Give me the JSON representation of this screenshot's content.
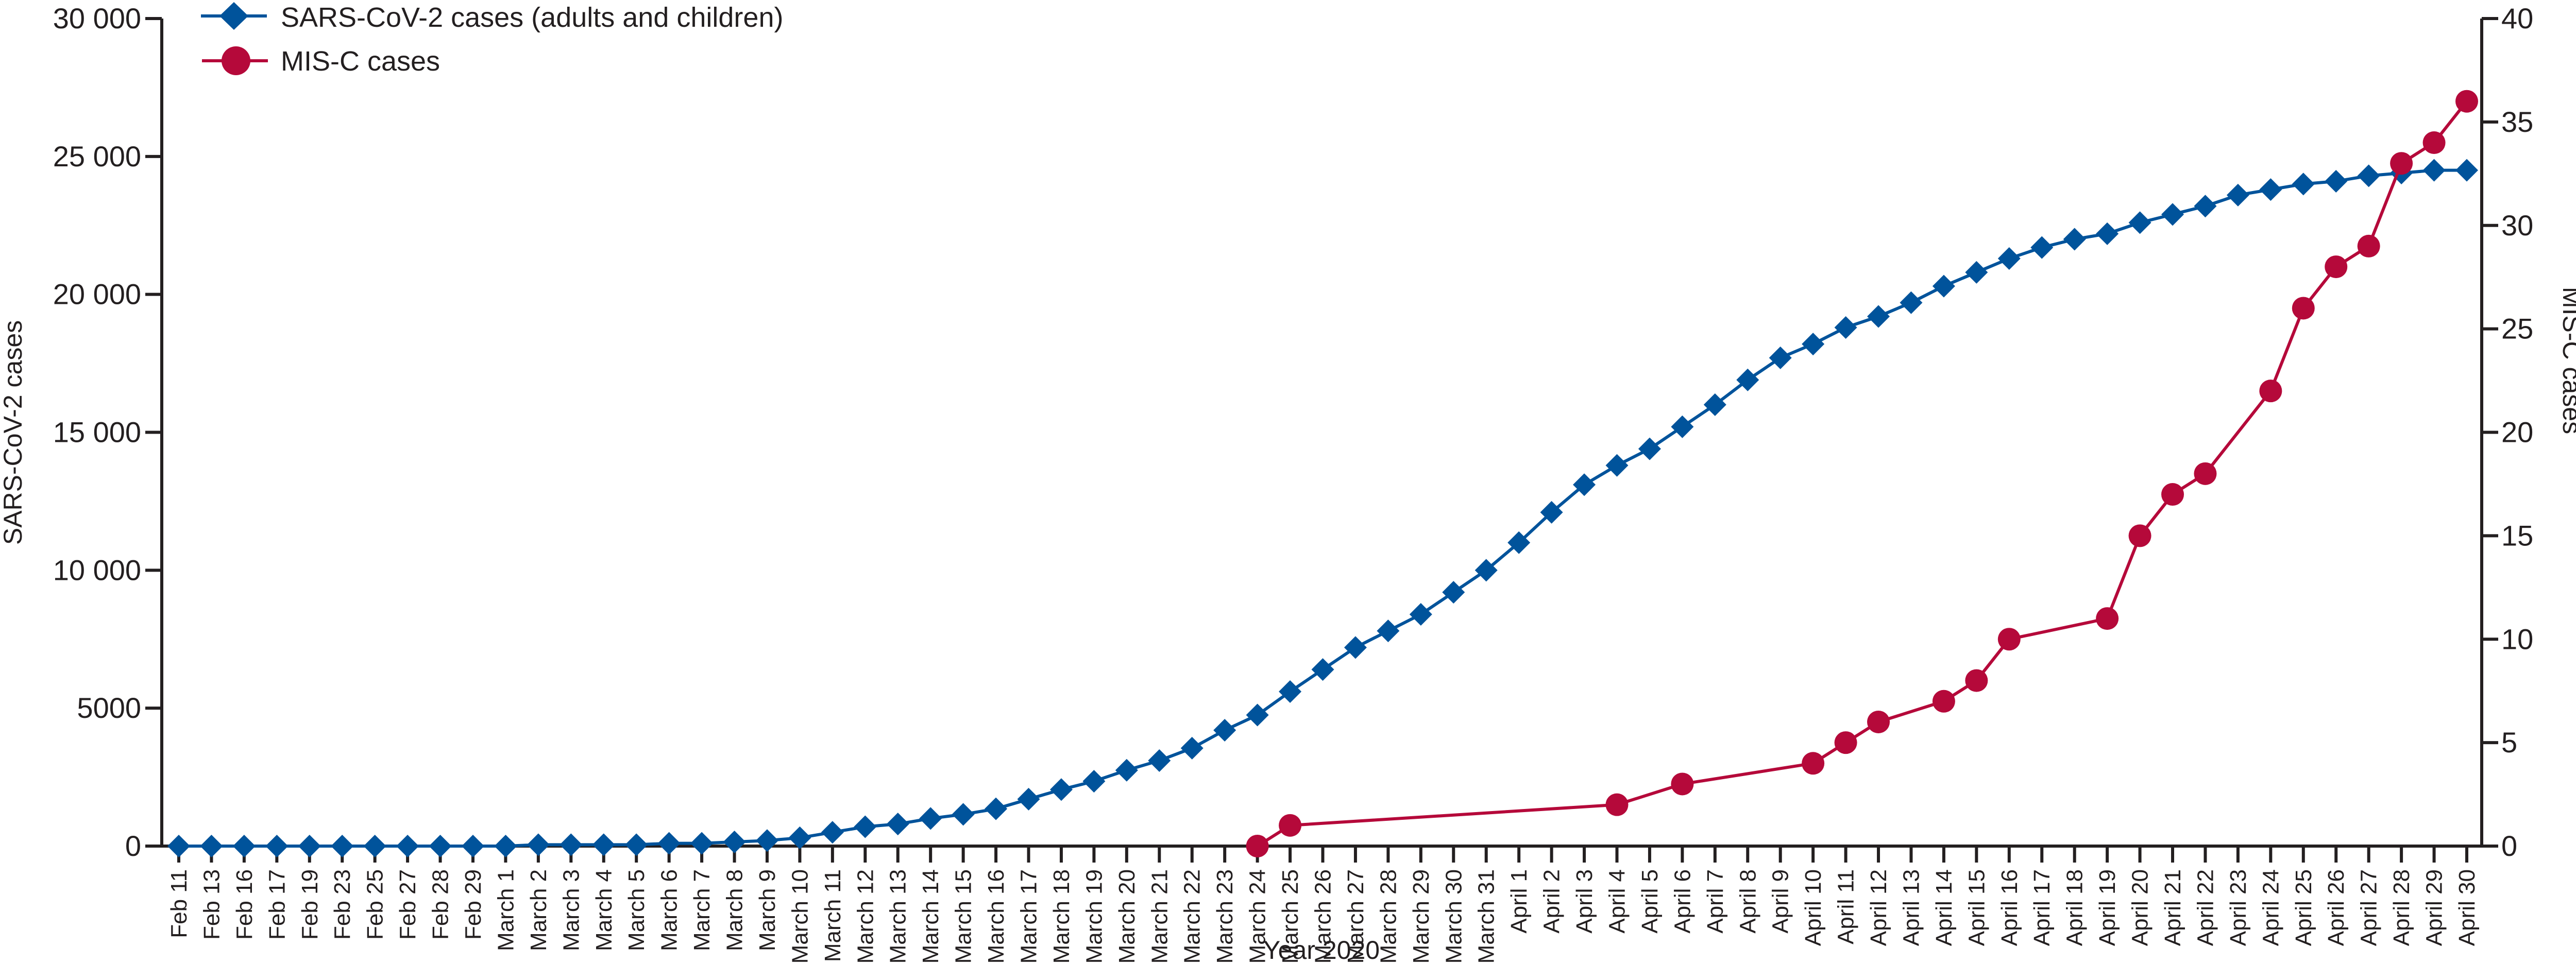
{
  "chart_data": {
    "type": "line",
    "xlabel": "Year 2020",
    "ylabel": "SARS-CoV-2 cases",
    "y2label": "MIS-C cases",
    "ylim": [
      0,
      30000
    ],
    "y2lim": [
      0,
      40
    ],
    "yticks": [
      "0",
      "5000",
      "10 000",
      "15 000",
      "20 000",
      "25 000",
      "30 000"
    ],
    "y2ticks": [
      "0",
      "5",
      "10",
      "15",
      "20",
      "25",
      "30",
      "35",
      "40"
    ],
    "legend_placement": "top-left",
    "grid": false,
    "categories": [
      "Feb 11",
      "Feb 13",
      "Feb 16",
      "Feb 17",
      "Feb 19",
      "Feb 23",
      "Feb 25",
      "Feb 27",
      "Feb 28",
      "Feb 29",
      "March 1",
      "March 2",
      "March 3",
      "March 4",
      "March 5",
      "March 6",
      "March 7",
      "March 8",
      "March 9",
      "March 10",
      "March 11",
      "March 12",
      "March 13",
      "March 14",
      "March 15",
      "March 16",
      "March 17",
      "March 18",
      "March 19",
      "March 20",
      "March 21",
      "March 22",
      "March 23",
      "March 24",
      "March 25",
      "March 26",
      "March 27",
      "March 28",
      "March 29",
      "March 30",
      "March 31",
      "April 1",
      "April 2",
      "April 3",
      "April 4",
      "April 5",
      "April 6",
      "April 7",
      "April 8",
      "April 9",
      "April 10",
      "April 11",
      "April 12",
      "April 13",
      "April 14",
      "April 15",
      "April 16",
      "April 17",
      "April 18",
      "April 19",
      "April 20",
      "April 21",
      "April 22",
      "April 23",
      "April 24",
      "April 25",
      "April 26",
      "April 27",
      "April 28",
      "April 29",
      "April 30"
    ],
    "series": [
      {
        "name": "SARS-CoV-2 cases (adults and children)",
        "axis": "left",
        "color": "#00539b",
        "marker": "diamond",
        "values": [
          0,
          0,
          0,
          0,
          0,
          0,
          0,
          0,
          0,
          0,
          0,
          50,
          50,
          50,
          50,
          100,
          100,
          150,
          200,
          300,
          500,
          700,
          800,
          1000,
          1150,
          1350,
          1700,
          2050,
          2350,
          2750,
          3100,
          3550,
          4200,
          4750,
          5600,
          6400,
          7200,
          7800,
          8400,
          9200,
          10000,
          11000,
          12100,
          13100,
          13800,
          14400,
          15200,
          16000,
          16900,
          17700,
          18200,
          18800,
          19200,
          19700,
          20300,
          20800,
          21300,
          21700,
          22000,
          22200,
          22600,
          22900,
          23200,
          23600,
          23800,
          24000,
          24100,
          24300,
          24400,
          24500,
          24500
        ]
      },
      {
        "name": "MIS-C cases",
        "axis": "right",
        "color": "#b5093a",
        "marker": "circle",
        "points": [
          [
            "March 24",
            0
          ],
          [
            "March 25",
            1
          ],
          [
            "April 4",
            2
          ],
          [
            "April 6",
            3
          ],
          [
            "April 10",
            4
          ],
          [
            "April 11",
            5
          ],
          [
            "April 12",
            6
          ],
          [
            "April 14",
            7
          ],
          [
            "April 15",
            8
          ],
          [
            "April 16",
            10
          ],
          [
            "April 19",
            11
          ],
          [
            "April 20",
            15
          ],
          [
            "April 21",
            17
          ],
          [
            "April 22",
            18
          ],
          [
            "April 24",
            22
          ],
          [
            "April 25",
            26
          ],
          [
            "April 26",
            28
          ],
          [
            "April 27",
            29
          ],
          [
            "April 28",
            33
          ],
          [
            "April 29",
            34
          ],
          [
            "April 30",
            36
          ]
        ]
      }
    ]
  }
}
